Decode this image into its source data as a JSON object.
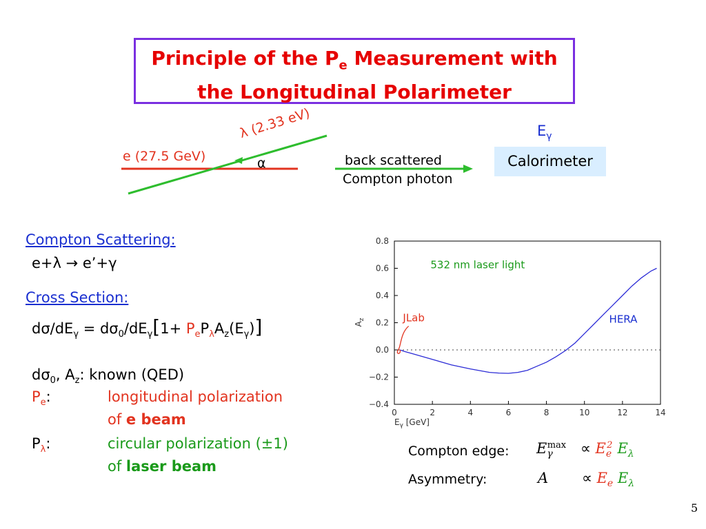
{
  "title": {
    "line1_pre": "Principle of the P",
    "line1_sub": "e",
    "line1_post": " Measurement with",
    "line2": "the Longitudinal Polarimeter"
  },
  "diagram": {
    "electron_label": "e (27.5 GeV)",
    "laser_label": "λ (2.33 eV)",
    "angle_label": "α",
    "photon_label_1": "back scattered",
    "photon_label_2": "Compton photon",
    "energy_label": "E",
    "energy_sub": "γ",
    "calorimeter": "Calorimeter"
  },
  "left": {
    "compton_heading": "Compton Scattering:",
    "reaction": "e+λ → e’+γ",
    "cross_heading": "Cross Section:",
    "known_line": "known (QED)",
    "pe_label": "P",
    "pe_sub": "e",
    "pe_desc1": "longitudinal polarization",
    "pe_desc2_pre": "of ",
    "pe_desc2_bold": "e beam",
    "pl_label": "P",
    "pl_sub": "λ",
    "pl_desc1": "circular polarization (±1)",
    "pl_desc2_pre": "of ",
    "pl_desc2_bold": "laser beam"
  },
  "formulas": {
    "edge_label": "Compton edge:",
    "asym_label": "Asymmetry:"
  },
  "page_number": "5",
  "colors": {
    "title_border": "#7a2fe0",
    "title_text": "#e60000",
    "electron": "#e2331f",
    "laser": "#2ebd2e",
    "curve": "#2b2bd6",
    "calorimeter_bg": "#d9eeff"
  },
  "chart_data": {
    "type": "line",
    "xlabel": "E_γ [GeV]",
    "ylabel": "A_z",
    "xlim": [
      0,
      14
    ],
    "ylim": [
      -0.4,
      0.8
    ],
    "x_ticks": [
      0,
      2,
      4,
      6,
      8,
      10,
      12,
      14
    ],
    "y_ticks": [
      -0.4,
      -0.2,
      0.0,
      0.2,
      0.4,
      0.6,
      0.8
    ],
    "x_tick_labels": [
      "0",
      "2",
      "4",
      "6",
      "8",
      "10",
      "12",
      "14"
    ],
    "y_tick_labels": [
      "−0.4",
      "−0.2",
      "0.0",
      "0.2",
      "0.4",
      "0.6",
      "0.8"
    ],
    "reference_line": 0.0,
    "annotations": {
      "laser": "532 nm laser light",
      "jlab": "JLab",
      "hera": "HERA"
    },
    "series": [
      {
        "x": [
          0.3,
          0.5,
          1,
          2,
          3,
          4,
          5,
          5.5,
          6,
          6.5,
          7,
          7.5,
          8,
          8.5,
          9,
          9.5,
          10,
          10.5,
          11,
          11.5,
          12,
          12.5,
          13,
          13.5,
          13.8
        ],
        "values": [
          0,
          -0.01,
          -0.03,
          -0.07,
          -0.11,
          -0.14,
          -0.165,
          -0.17,
          -0.172,
          -0.165,
          -0.15,
          -0.12,
          -0.09,
          -0.05,
          -0.005,
          0.05,
          0.12,
          0.19,
          0.26,
          0.33,
          0.4,
          0.47,
          0.53,
          0.58,
          0.6
        ]
      }
    ]
  }
}
